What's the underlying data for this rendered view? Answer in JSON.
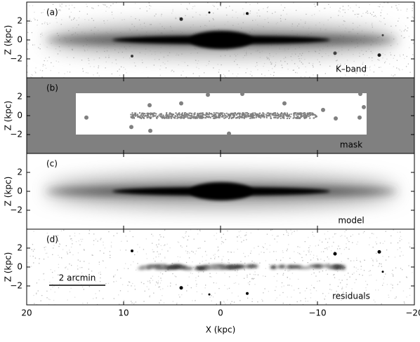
{
  "chart_data": [
    {
      "type": "image",
      "panel_label": "(a)",
      "annotation": "K–band",
      "ylabel": "Z (kpc)",
      "ylim": [
        -4,
        4
      ],
      "yticks": [
        {
          "value": -2,
          "label": "−2"
        },
        0,
        2
      ]
    },
    {
      "type": "image",
      "panel_label": "(b)",
      "annotation": "mask",
      "ylabel": "Z (kpc)",
      "ylim": [
        -4,
        4
      ],
      "yticks": [
        {
          "value": -2,
          "label": "−2"
        },
        0,
        2
      ]
    },
    {
      "type": "image",
      "panel_label": "(c)",
      "annotation": "model",
      "ylabel": "Z (kpc)",
      "ylim": [
        -4,
        4
      ],
      "yticks": [
        {
          "value": -2,
          "label": "−2"
        },
        0,
        2
      ]
    },
    {
      "type": "image",
      "panel_label": "(d)",
      "annotation": "residuals",
      "scale_bar": "2 arcmin",
      "ylabel": "Z (kpc)",
      "ylim": [
        -4,
        4
      ],
      "yticks": [
        {
          "value": -2,
          "label": "−2"
        },
        0,
        2
      ],
      "xlabel": "X (kpc)",
      "xlim": [
        20,
        -20
      ],
      "xticks": [
        20,
        10,
        0,
        {
          "value": -10,
          "label": "−10"
        },
        {
          "value": -20,
          "label": "−20"
        }
      ]
    }
  ]
}
